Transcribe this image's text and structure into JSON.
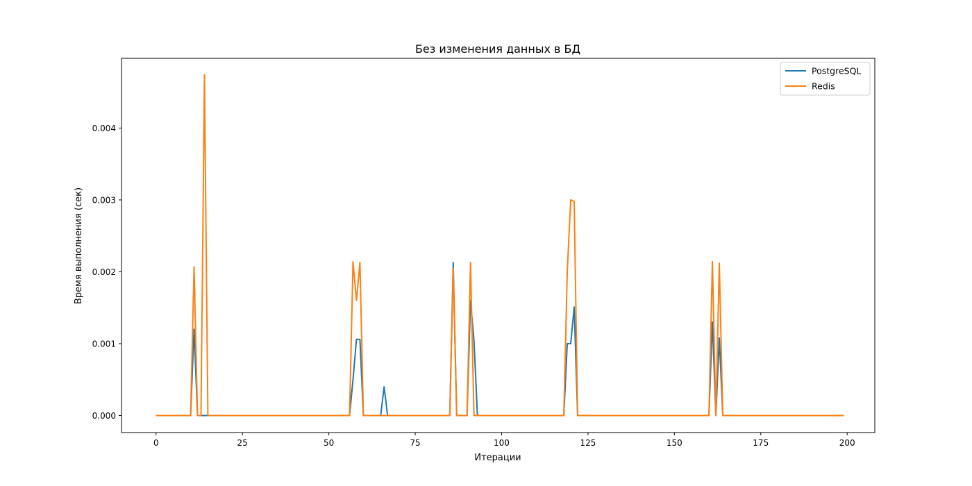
{
  "chart_data": {
    "type": "line",
    "title": "Без изменения данных в БД",
    "xlabel": "Итерации",
    "ylabel": "Время выполнения (сек)",
    "xlim": [
      -10,
      208
    ],
    "ylim": [
      -0.000237,
      0.00497
    ],
    "x_ticks": [
      0,
      25,
      50,
      75,
      100,
      125,
      150,
      175,
      200
    ],
    "x_tick_labels": [
      "0",
      "25",
      "50",
      "75",
      "100",
      "125",
      "150",
      "175",
      "200"
    ],
    "y_ticks": [
      0,
      0.001,
      0.002,
      0.003,
      0.004
    ],
    "y_tick_labels": [
      "0.000",
      "0.001",
      "0.002",
      "0.003",
      "0.004"
    ],
    "grid": false,
    "legend_position": "top-right",
    "x_range": [
      0,
      199
    ],
    "series": [
      {
        "name": "PostgreSQL",
        "color": "#1f77b4",
        "values": [
          0,
          0,
          0,
          0,
          0,
          0,
          0,
          0,
          0,
          0,
          0,
          0.0012,
          0,
          0,
          0,
          0,
          0,
          0,
          0,
          0,
          0,
          0,
          0,
          0,
          0,
          0,
          0,
          0,
          0,
          0,
          0,
          0,
          0,
          0,
          0,
          0,
          0,
          0,
          0,
          0,
          0,
          0,
          0,
          0,
          0,
          0,
          0,
          0,
          0,
          0,
          0,
          0,
          0,
          0,
          0,
          0,
          0,
          0.0005,
          0.00106,
          0.00106,
          0,
          0,
          0,
          0,
          0,
          0,
          0.0004,
          0,
          0,
          0,
          0,
          0,
          0,
          0,
          0,
          0,
          0,
          0,
          0,
          0,
          0,
          0,
          0,
          0,
          0,
          0,
          0.00213,
          0,
          0,
          0,
          0,
          0.0016,
          0.00105,
          0,
          0,
          0,
          0,
          0,
          0,
          0,
          0,
          0,
          0,
          0,
          0,
          0,
          0,
          0,
          0,
          0,
          0,
          0,
          0,
          0,
          0,
          0,
          0,
          0,
          0,
          0.001,
          0.001,
          0.00151,
          0,
          0,
          0,
          0,
          0,
          0,
          0,
          0,
          0,
          0,
          0,
          0,
          0,
          0,
          0,
          0,
          0,
          0,
          0,
          0,
          0,
          0,
          0,
          0,
          0,
          0,
          0,
          0,
          0,
          0,
          0,
          0,
          0,
          0,
          0,
          0,
          0,
          0,
          0,
          0.0013,
          0,
          0.00108,
          0,
          0,
          0,
          0,
          0,
          0,
          0,
          0,
          0,
          0,
          0,
          0,
          0,
          0,
          0,
          0,
          0,
          0,
          0,
          0,
          0,
          0,
          0,
          0,
          0,
          0,
          0,
          0,
          0,
          0,
          0,
          0,
          0,
          0,
          0,
          0
        ]
      },
      {
        "name": "Redis",
        "color": "#ff7f0e",
        "values": [
          0,
          0,
          0,
          0,
          0,
          0,
          0,
          0,
          0,
          0,
          0,
          0.00207,
          0,
          0,
          0.00474,
          0,
          0,
          0,
          0,
          0,
          0,
          0,
          0,
          0,
          0,
          0,
          0,
          0,
          0,
          0,
          0,
          0,
          0,
          0,
          0,
          0,
          0,
          0,
          0,
          0,
          0,
          0,
          0,
          0,
          0,
          0,
          0,
          0,
          0,
          0,
          0,
          0,
          0,
          0,
          0,
          0,
          0,
          0.00214,
          0.0016,
          0.00213,
          0,
          0,
          0,
          0,
          0,
          0,
          0,
          0,
          0,
          0,
          0,
          0,
          0,
          0,
          0,
          0,
          0,
          0,
          0,
          0,
          0,
          0,
          0,
          0,
          0,
          0,
          0.00205,
          0,
          0,
          0,
          0,
          0.00213,
          0,
          0,
          0,
          0,
          0,
          0,
          0,
          0,
          0,
          0,
          0,
          0,
          0,
          0,
          0,
          0,
          0,
          0,
          0,
          0,
          0,
          0,
          0,
          0,
          0,
          0,
          0,
          0.002,
          0.003,
          0.00298,
          0,
          0,
          0,
          0,
          0,
          0,
          0,
          0,
          0,
          0,
          0,
          0,
          0,
          0,
          0,
          0,
          0,
          0,
          0,
          0,
          0,
          0,
          0,
          0,
          0,
          0,
          0,
          0,
          0,
          0,
          0,
          0,
          0,
          0,
          0,
          0,
          0,
          0,
          0,
          0.00214,
          0,
          0.00212,
          0,
          0,
          0,
          0,
          0,
          0,
          0,
          0,
          0,
          0,
          0,
          0,
          0,
          0,
          0,
          0,
          0,
          0,
          0,
          0,
          0,
          0,
          0,
          0,
          0,
          0,
          0,
          0,
          0,
          0,
          0,
          0,
          0,
          0,
          0,
          0
        ]
      }
    ]
  }
}
